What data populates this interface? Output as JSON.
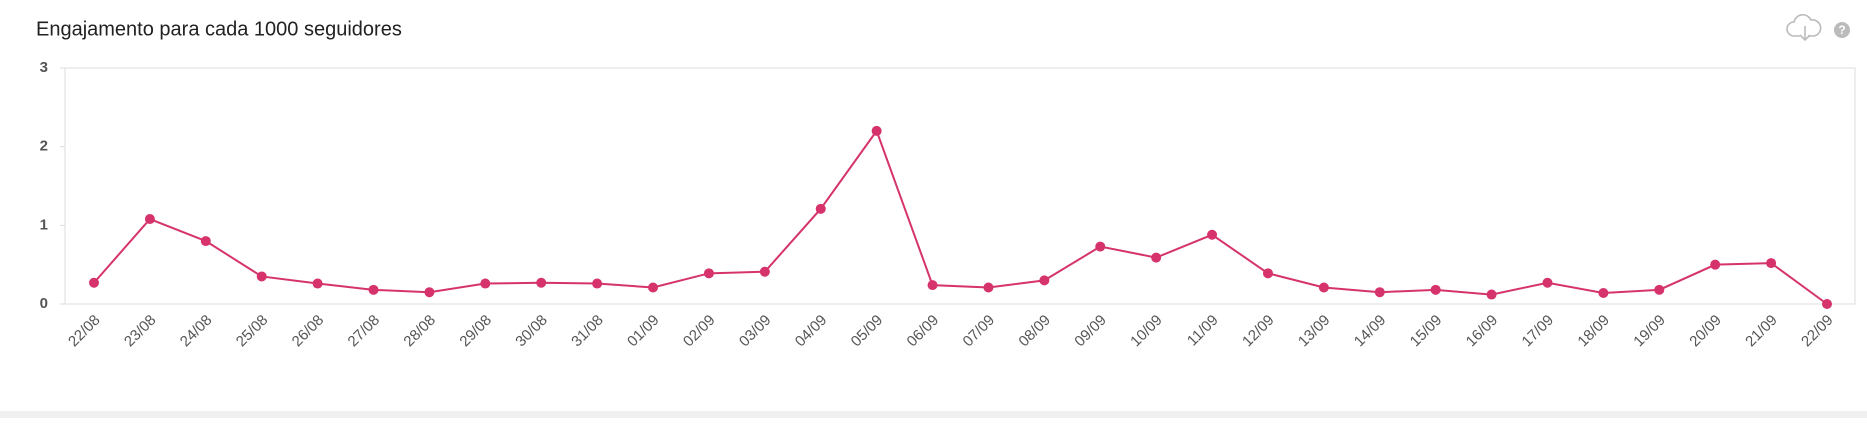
{
  "chart_data": {
    "type": "line",
    "title": "Engajamento para cada 1000 seguidores",
    "categories": [
      "22/08",
      "23/08",
      "24/08",
      "25/08",
      "26/08",
      "27/08",
      "28/08",
      "29/08",
      "30/08",
      "31/08",
      "01/09",
      "02/09",
      "03/09",
      "04/09",
      "05/09",
      "06/09",
      "07/09",
      "08/09",
      "09/09",
      "10/09",
      "11/09",
      "12/09",
      "13/09",
      "14/09",
      "15/09",
      "16/09",
      "17/09",
      "18/09",
      "19/09",
      "20/09",
      "21/09",
      "22/09"
    ],
    "series": [
      {
        "color": "#d6336c",
        "values": [
          0.27,
          1.08,
          0.8,
          0.35,
          0.26,
          0.18,
          0.15,
          0.26,
          0.27,
          0.26,
          0.21,
          0.39,
          0.41,
          1.21,
          2.2,
          0.24,
          0.21,
          0.3,
          0.73,
          0.59,
          0.88,
          0.39,
          0.21,
          0.15,
          0.18,
          0.12,
          0.27,
          0.14,
          0.18,
          0.5,
          0.52,
          0
        ]
      }
    ],
    "ylim": [
      0,
      3
    ],
    "yticks": [
      0,
      1,
      2,
      3
    ]
  }
}
